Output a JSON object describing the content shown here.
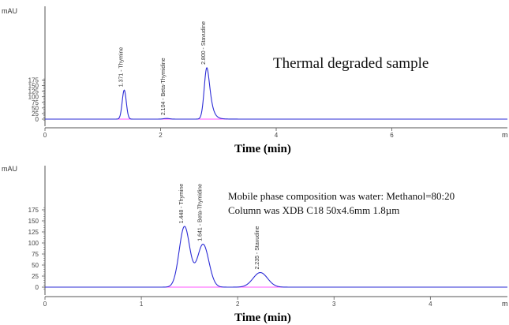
{
  "colors": {
    "trace": "#2b2bd6",
    "baseline": "#ff55ff",
    "axis": "#555555"
  },
  "chart_data": [
    {
      "type": "line",
      "title": "Thermal degraded sample",
      "xlabel": "Time (min)",
      "ylabel": "mAU",
      "x_unit_label": "m",
      "xlim": [
        0,
        8.0
      ],
      "ylim": [
        -10,
        195
      ],
      "x_ticks": [
        0,
        2,
        4,
        6
      ],
      "y_ticks": [
        0,
        25,
        50,
        75,
        100,
        125,
        150,
        175
      ],
      "grid": false,
      "peaks": [
        {
          "label": "1.371 - Thymine",
          "rt": 1.371,
          "height": 130,
          "width": 0.035
        },
        {
          "label": "2.104 - Beta-Thymidine",
          "rt": 2.104,
          "height": 3,
          "width": 0.05
        },
        {
          "label": "2.800 - Stavudine",
          "rt": 2.8,
          "height": 230,
          "width": 0.045,
          "tail": 0.16
        }
      ],
      "notes": []
    },
    {
      "type": "line",
      "title": "",
      "xlabel": "Time (min)",
      "ylabel": "mAU",
      "x_unit_label": "m",
      "xlim": [
        0,
        4.8
      ],
      "ylim": [
        -10,
        195
      ],
      "x_ticks": [
        0,
        1,
        2,
        3,
        4
      ],
      "y_ticks": [
        0,
        25,
        50,
        75,
        100,
        125,
        150,
        175
      ],
      "grid": false,
      "peaks": [
        {
          "label": "1.448 - Thymine",
          "rt": 1.448,
          "height": 137,
          "width": 0.055
        },
        {
          "label": "1.641 - Beta-Thymidine",
          "rt": 1.641,
          "height": 97,
          "width": 0.06
        },
        {
          "label": "2.235 - Stavudine",
          "rt": 2.235,
          "height": 33,
          "width": 0.075
        }
      ],
      "notes": [
        "Mobile phase composition was water: Methanol=80:20",
        "Column was XDB C18 50x4.6mm 1.8µm"
      ]
    }
  ]
}
